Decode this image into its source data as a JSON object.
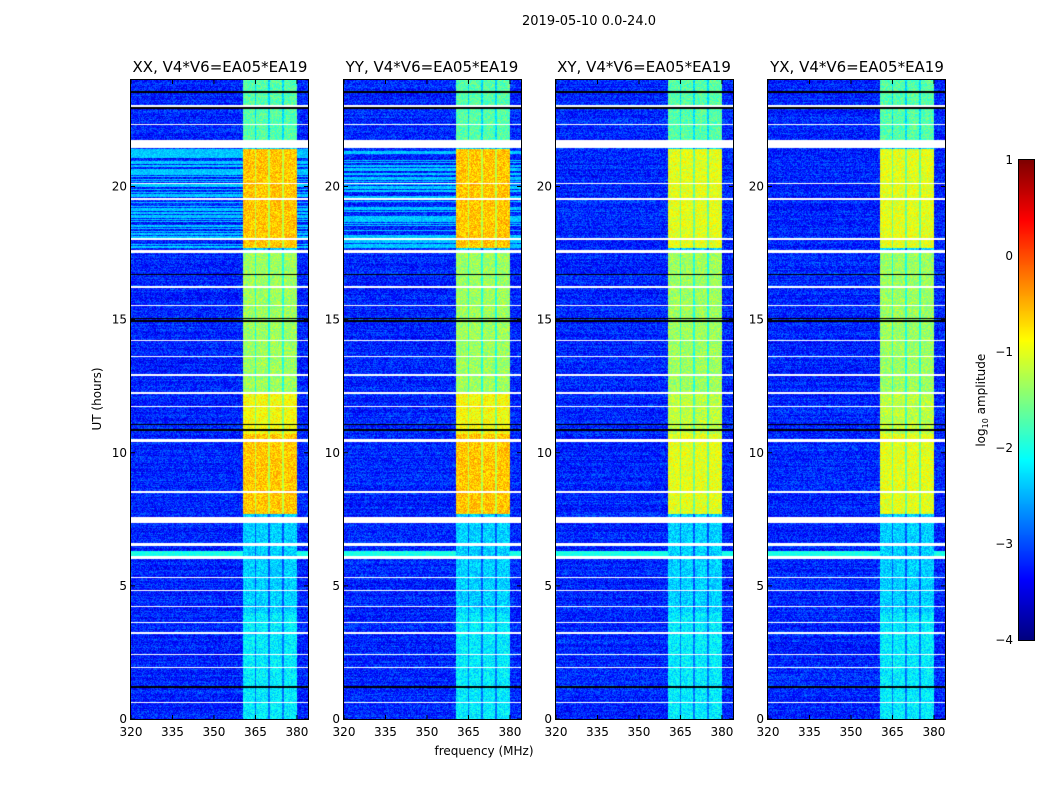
{
  "chart_data": {
    "type": "heatmap",
    "title": "2019-05-10 0.0-24.0",
    "xlabel": "frequency (MHz)",
    "ylabel": "UT (hours)",
    "xlim": [
      320,
      384
    ],
    "ylim": [
      0,
      24
    ],
    "xticks": [
      320,
      335,
      350,
      365,
      380
    ],
    "xtick_labels": [
      "320",
      "335",
      "350",
      "365",
      "380"
    ],
    "yticks": [
      0,
      5,
      10,
      15,
      20
    ],
    "ytick_labels": [
      "0",
      "5",
      "10",
      "15",
      "20"
    ],
    "panels": [
      {
        "title": "XX, V4*V6=EA05*EA19",
        "pol": "XX",
        "peak_level": -0.6
      },
      {
        "title": "YY, V4*V6=EA05*EA19",
        "pol": "YY",
        "peak_level": -0.6
      },
      {
        "title": "XY, V4*V6=EA05*EA19",
        "pol": "XY",
        "peak_level": -1.0
      },
      {
        "title": "YX, V4*V6=EA05*EA19",
        "pol": "YX",
        "peak_level": -1.0
      }
    ],
    "rfi_subbands_mhz": [
      [
        360.5,
        364.7
      ],
      [
        365.3,
        369.7
      ],
      [
        370.3,
        374.7
      ],
      [
        375.3,
        380.0
      ]
    ],
    "background_level": -3.2,
    "flagged_hours": [
      [
        21.45,
        21.75
      ],
      [
        7.35,
        7.6
      ],
      [
        6.0,
        6.12
      ],
      [
        23.0,
        23.05
      ],
      [
        22.3,
        22.35
      ],
      [
        20.1,
        20.15
      ],
      [
        19.5,
        19.55
      ],
      [
        18.0,
        18.05
      ],
      [
        17.5,
        17.6
      ],
      [
        16.2,
        16.25
      ],
      [
        15.5,
        15.55
      ],
      [
        14.2,
        14.25
      ],
      [
        13.6,
        13.65
      ],
      [
        12.9,
        12.95
      ],
      [
        12.2,
        12.3
      ],
      [
        11.7,
        11.75
      ],
      [
        10.4,
        10.5
      ],
      [
        8.5,
        8.55
      ],
      [
        6.5,
        6.6
      ],
      [
        5.3,
        5.35
      ],
      [
        4.8,
        4.85
      ],
      [
        4.2,
        4.25
      ],
      [
        3.6,
        3.65
      ],
      [
        3.2,
        3.25
      ],
      [
        2.4,
        2.45
      ],
      [
        1.9,
        1.95
      ],
      [
        0.6,
        0.65
      ]
    ],
    "colorbar": {
      "label": "log10 amplitude",
      "label_base": "log",
      "label_sub": "10",
      "label_rest": " amplitude",
      "range": [
        -4,
        1
      ],
      "ticks": [
        1,
        0,
        -1,
        -2,
        -3,
        -4
      ],
      "tick_labels": [
        "1",
        "0",
        "−1",
        "−2",
        "−3",
        "−4"
      ],
      "colormap": "jet"
    }
  }
}
